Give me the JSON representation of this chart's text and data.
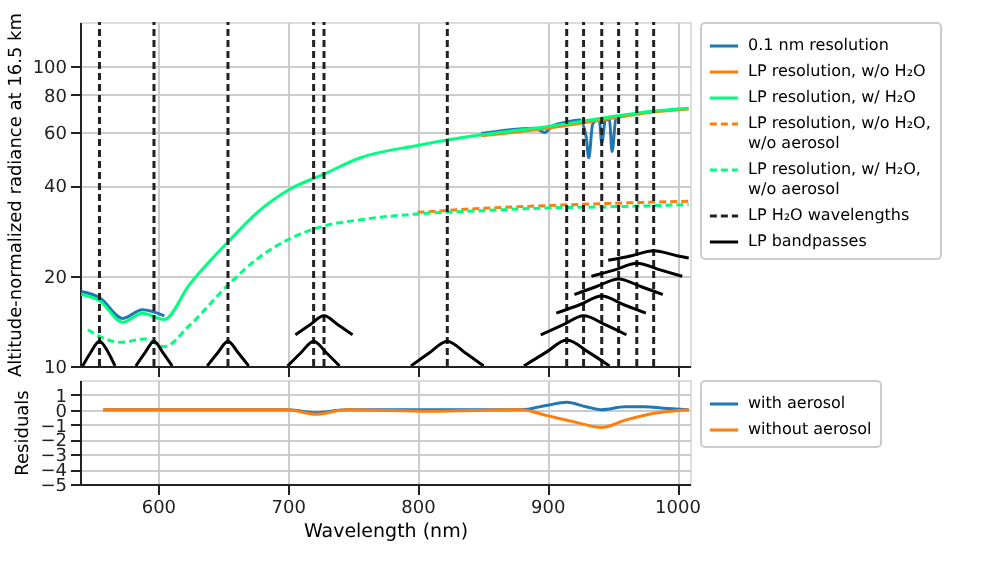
{
  "chart_data": [
    {
      "type": "line",
      "ylabel": "Altitude-normalized radiance at 16.5 km",
      "xlim": [
        540,
        1010
      ],
      "xticks": [
        600,
        700,
        800,
        900,
        1000
      ],
      "ylim": [
        10,
        140
      ],
      "yticks": [
        10,
        20,
        40,
        60,
        80,
        100
      ],
      "log": "y",
      "grid": true,
      "legend": "right",
      "tick_labels": "y",
      "series": [
        {
          "name": "0.1 nm resolution",
          "color": "#1f77b4",
          "line_style": "solid",
          "x": [
            541,
            555,
            573,
            588,
            605,
            624,
            654,
            678,
            702,
            727,
            756,
            800,
            849,
            890,
            898,
            904,
            915,
            925,
            930,
            932,
            935,
            940,
            942,
            945,
            948,
            950,
            953,
            960
          ],
          "values": [
            17.7,
            16.9,
            14.4,
            15.4,
            14.7,
            null,
            null,
            null,
            null,
            null,
            null,
            null,
            59.5,
            62.0,
            60.0,
            63.0,
            65.0,
            66.0,
            58,
            49.4,
            64,
            66.5,
            55.6,
            66.5,
            65.5,
            51.8,
            67.5,
            68.2
          ]
        },
        {
          "name": "LP resolution, w/o H₂O",
          "color": "#ff7f0e",
          "line_style": "solid",
          "x": [
            849,
            898,
            946,
            980,
            1009
          ],
          "values": [
            58.5,
            61.8,
            66.5,
            70.0,
            71.8
          ]
        },
        {
          "name": "LP resolution, w/ H₂O",
          "color": "#00ff7f",
          "line_style": "solid",
          "x": [
            541,
            555,
            573,
            588,
            605,
            624,
            654,
            678,
            702,
            727,
            756,
            800,
            849,
            898,
            946,
            980,
            1009
          ],
          "values": [
            17.3,
            16.5,
            14.0,
            15.0,
            14.3,
            18.6,
            25.9,
            32.9,
            38.9,
            43.4,
            49.4,
            54.3,
            58.9,
            62.6,
            67.3,
            70.6,
            72.3
          ]
        },
        {
          "name": "LP resolution, w/o H₂O, w/o aerosol",
          "color": "#ff7f0e",
          "line_style": "dashed",
          "x": [
            800,
            849,
            898,
            946,
            1009
          ],
          "values": [
            32.5,
            33.5,
            34.2,
            34.8,
            35.4
          ]
        },
        {
          "name": "LP resolution, w/ H₂O, w/o aerosol",
          "color": "#00ff7f",
          "line_style": "dashed",
          "x": [
            546,
            571,
            590,
            605,
            624,
            654,
            678,
            702,
            727,
            756,
            800,
            849,
            898,
            946,
            1009
          ],
          "values": [
            13.2,
            12.0,
            12.3,
            11.6,
            13.6,
            18.6,
            23.0,
            26.6,
            29.2,
            30.7,
            32.1,
            32.9,
            33.6,
            33.9,
            34.5
          ]
        },
        {
          "name": "LP H₂O wavelengths",
          "color": "#222222",
          "line_style": "dashed",
          "x": [
            555,
            555
          ],
          "values": [
            10,
            140
          ]
        },
        {
          "color": "#222222",
          "line_style": "dashed",
          "x": [
            597,
            597
          ],
          "values": [
            10,
            140
          ]
        },
        {
          "color": "#222222",
          "line_style": "dashed",
          "x": [
            654,
            654
          ],
          "values": [
            10,
            140
          ]
        },
        {
          "color": "#222222",
          "line_style": "dashed",
          "x": [
            720,
            720
          ],
          "values": [
            10,
            140
          ]
        },
        {
          "color": "#222222",
          "line_style": "dashed",
          "x": [
            728,
            728
          ],
          "values": [
            10,
            140
          ]
        },
        {
          "color": "#222222",
          "line_style": "dashed",
          "x": [
            823,
            823
          ],
          "values": [
            10,
            140
          ]
        },
        {
          "color": "#222222",
          "line_style": "dashed",
          "x": [
            915,
            915
          ],
          "values": [
            10,
            140
          ]
        },
        {
          "color": "#222222",
          "line_style": "dashed",
          "x": [
            928,
            928
          ],
          "values": [
            10,
            140
          ]
        },
        {
          "color": "#222222",
          "line_style": "dashed",
          "x": [
            942,
            942
          ],
          "values": [
            10,
            140
          ]
        },
        {
          "color": "#222222",
          "line_style": "dashed",
          "x": [
            955,
            955
          ],
          "values": [
            10,
            140
          ]
        },
        {
          "color": "#222222",
          "line_style": "dashed",
          "x": [
            969,
            969
          ],
          "values": [
            10,
            140
          ]
        },
        {
          "color": "#222222",
          "line_style": "dashed",
          "x": [
            982,
            982
          ],
          "values": [
            10,
            140
          ]
        },
        {
          "name": "LP bandpasses",
          "color": "#000000",
          "line_style": "solid",
          "x": [
            542,
            548,
            555,
            562,
            567
          ],
          "values": [
            10,
            11.05,
            12.1,
            11.05,
            10
          ]
        },
        {
          "color": "#000000",
          "line_style": "solid",
          "x": [
            583,
            590,
            597,
            604,
            611
          ],
          "values": [
            10,
            11.05,
            12.1,
            11.05,
            10
          ]
        },
        {
          "color": "#000000",
          "line_style": "solid",
          "x": [
            638,
            646,
            654,
            662,
            670
          ],
          "values": [
            10,
            11.05,
            12.1,
            11.05,
            10
          ]
        },
        {
          "color": "#000000",
          "line_style": "solid",
          "x": [
            700,
            710,
            720,
            730,
            740
          ],
          "values": [
            10,
            11.05,
            12.1,
            11.05,
            10
          ]
        },
        {
          "color": "#000000",
          "line_style": "solid",
          "x": [
            706,
            717,
            728,
            739,
            750
          ],
          "values": [
            12.7,
            13.7,
            14.7,
            13.7,
            12.7
          ]
        },
        {
          "color": "#000000",
          "line_style": "solid",
          "x": [
            795,
            809,
            823,
            837,
            851
          ],
          "values": [
            10,
            11.05,
            12.1,
            11.05,
            10
          ]
        },
        {
          "color": "#000000",
          "line_style": "solid",
          "x": [
            882,
            899,
            915,
            932,
            948
          ],
          "values": [
            10,
            11.1,
            12.2,
            11.1,
            10
          ]
        },
        {
          "color": "#000000",
          "line_style": "solid",
          "x": [
            895,
            912,
            928,
            945,
            961
          ],
          "values": [
            12.7,
            13.7,
            14.7,
            13.7,
            12.7
          ]
        },
        {
          "color": "#000000",
          "line_style": "solid",
          "x": [
            907,
            925,
            942,
            959,
            976
          ],
          "values": [
            15.0,
            16.0,
            17.1,
            16.0,
            15.0
          ]
        },
        {
          "color": "#000000",
          "line_style": "solid",
          "x": [
            921,
            938,
            955,
            972,
            989
          ],
          "values": [
            17.3,
            18.4,
            19.5,
            18.4,
            17.3
          ]
        },
        {
          "color": "#000000",
          "line_style": "solid",
          "x": [
            934,
            952,
            969,
            987,
            1004
          ],
          "values": [
            19.9,
            20.9,
            22.0,
            20.9,
            19.9
          ]
        },
        {
          "color": "#000000",
          "line_style": "solid",
          "x": [
            947,
            965,
            982,
            1000,
            1009
          ],
          "values": [
            22.5,
            23.3,
            24.2,
            23.3,
            22.9
          ]
        }
      ]
    },
    {
      "type": "line",
      "xlabel": "Wavelength (nm)",
      "ylabel": "Residuals",
      "xlim": [
        540,
        1010
      ],
      "xticks": [
        600,
        700,
        800,
        900,
        1000
      ],
      "ylim": [
        -5,
        2
      ],
      "yticks": [
        -5,
        -4,
        -3,
        -2,
        -1,
        0,
        1
      ],
      "grid": true,
      "legend": "right",
      "series": [
        {
          "name": "with aerosol",
          "color": "#1f77b4",
          "line_style": "solid",
          "x": [
            558,
            600,
            700,
            722,
            745,
            800,
            880,
            900,
            915,
            930,
            942,
            960,
            975,
            990,
            1009
          ],
          "values": [
            0,
            0,
            0,
            -0.2,
            0,
            0,
            0,
            0.3,
            0.5,
            0.2,
            0,
            0.2,
            0.2,
            0.1,
            0
          ]
        },
        {
          "name": "without aerosol",
          "color": "#ff7f0e",
          "line_style": "solid",
          "x": [
            558,
            600,
            700,
            722,
            745,
            810,
            880,
            900,
            920,
            942,
            960,
            985,
            1009
          ],
          "values": [
            0,
            0,
            0,
            -0.3,
            0,
            -0.1,
            0,
            -0.4,
            -0.8,
            -1.2,
            -0.7,
            -0.2,
            0
          ]
        }
      ]
    }
  ]
}
